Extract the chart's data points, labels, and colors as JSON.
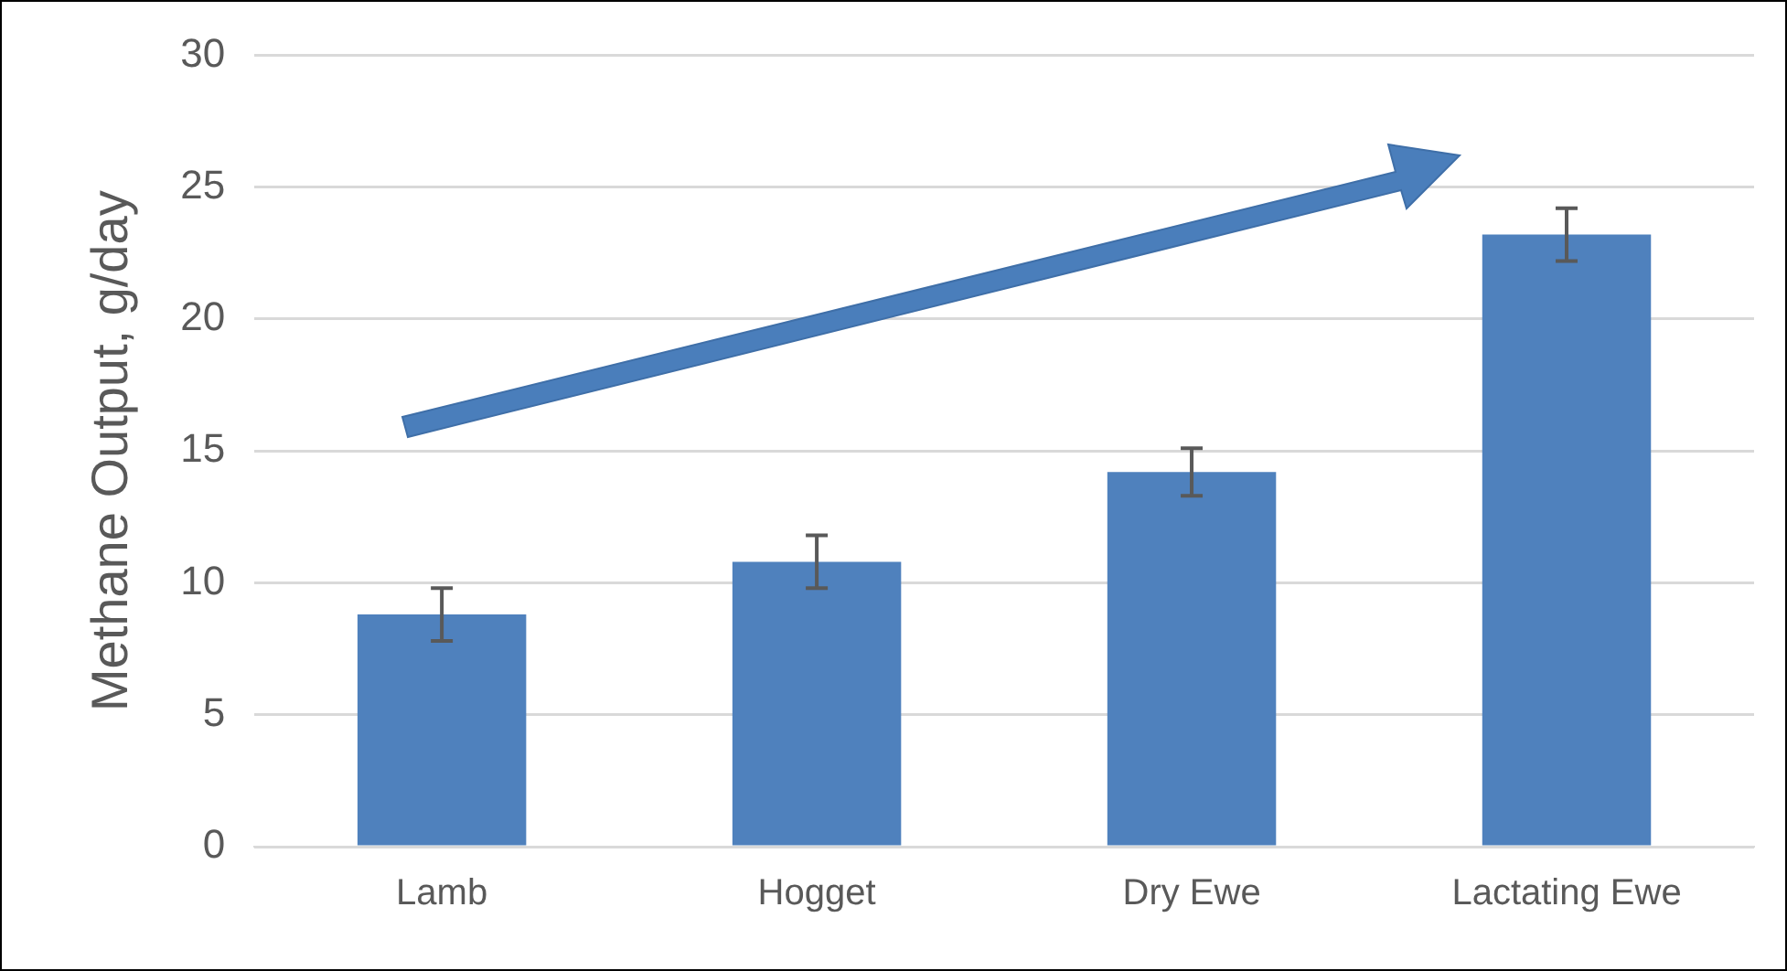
{
  "chart_data": {
    "type": "bar",
    "ylabel": "Methane Output, g/day",
    "categories": [
      "Lamb",
      "Hogget",
      "Dry Ewe",
      "Lactating Ewe"
    ],
    "values": [
      8.8,
      10.8,
      14.2,
      23.2
    ],
    "errors": [
      1.0,
      1.0,
      0.9,
      1.0
    ],
    "color": "#4f81bd",
    "ylim": [
      0,
      30
    ],
    "yticks": [
      0,
      5,
      10,
      15,
      20,
      25,
      30
    ],
    "grid": "y",
    "legend": false
  }
}
